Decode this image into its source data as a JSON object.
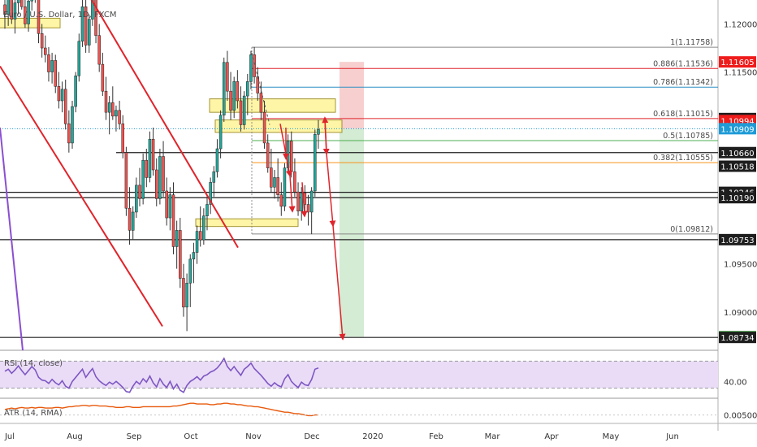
{
  "chart_data": {
    "type": "candlestick",
    "title": "Euro / U.S. Dollar, 1D, FXCM",
    "price_axis": {
      "ylim": [
        1.086,
        1.1225
      ],
      "ticks": [
        "1.12000",
        "1.11500",
        "1.09500",
        "1.09000"
      ]
    },
    "time_axis": {
      "labels": [
        "Jul",
        "Aug",
        "Sep",
        "Oct",
        "Nov",
        "Dec",
        "2020",
        "Feb",
        "Mar",
        "Apr",
        "May",
        "Jun"
      ]
    },
    "price_labels": [
      {
        "text": "1.11605",
        "value": 1.11605,
        "color": "#ef1c1c"
      },
      {
        "text": "1.11015",
        "value": 1.11015,
        "color": "#1e1e1e"
      },
      {
        "text": "1.10994",
        "value": 1.10994,
        "color": "#ef1c1c"
      },
      {
        "text": "1.10909",
        "value": 1.10909,
        "color": "#1e9bd7"
      },
      {
        "text": "1.10660",
        "value": 1.1066,
        "color": "#1e1e1e"
      },
      {
        "text": "1.10518",
        "value": 1.10518,
        "color": "#1e1e1e"
      },
      {
        "text": "1.10246",
        "value": 1.10246,
        "color": "#1e1e1e"
      },
      {
        "text": "1.10190",
        "value": 1.1019,
        "color": "#1e1e1e"
      },
      {
        "text": "1.09753",
        "value": 1.09753,
        "color": "#1e1e1e"
      },
      {
        "text": "1.08741",
        "value": 1.08741,
        "color": "#1a8a1a"
      },
      {
        "text": "1.08734",
        "value": 1.08734,
        "color": "#1e1e1e"
      }
    ],
    "fibonacci": [
      {
        "label": "1(1.11758)",
        "value": 1.11758,
        "color": "#888888"
      },
      {
        "label": "0.886(1.11536)",
        "value": 1.11536,
        "color": "#e0242b"
      },
      {
        "label": "0.786(1.11342)",
        "value": 1.11342,
        "color": "#2d8fc4"
      },
      {
        "label": "0.618(1.11015)",
        "value": 1.11015,
        "color": "#e0242b"
      },
      {
        "label": "0.5(1.10785)",
        "value": 1.10785,
        "color": "#4caf50"
      },
      {
        "label": "0.382(1.10555)",
        "value": 1.10555,
        "color": "#f7931a"
      },
      {
        "label": "0(1.09812)",
        "value": 1.09812,
        "color": "#888888"
      }
    ],
    "horizontal_levels": [
      1.1066,
      1.10246,
      1.1019,
      1.09753,
      1.08734
    ],
    "dotted_level": 1.10909,
    "position": {
      "entry": 1.10909,
      "stop": 1.11605,
      "target": 1.08741
    },
    "candles": [
      {
        "o": 1.122,
        "h": 1.124,
        "l": 1.1195,
        "c": 1.121
      },
      {
        "o": 1.121,
        "h": 1.1235,
        "l": 1.1198,
        "c": 1.1226
      },
      {
        "o": 1.1226,
        "h": 1.1245,
        "l": 1.12,
        "c": 1.1205
      },
      {
        "o": 1.1205,
        "h": 1.1228,
        "l": 1.119,
        "c": 1.1222
      },
      {
        "o": 1.1222,
        "h": 1.1244,
        "l": 1.121,
        "c": 1.1238
      },
      {
        "o": 1.1238,
        "h": 1.125,
        "l": 1.1215,
        "c": 1.1218
      },
      {
        "o": 1.1218,
        "h": 1.1232,
        "l": 1.1196,
        "c": 1.12
      },
      {
        "o": 1.12,
        "h": 1.1228,
        "l": 1.1192,
        "c": 1.1224
      },
      {
        "o": 1.1224,
        "h": 1.125,
        "l": 1.1214,
        "c": 1.124
      },
      {
        "o": 1.124,
        "h": 1.1252,
        "l": 1.1222,
        "c": 1.1228
      },
      {
        "o": 1.1228,
        "h": 1.124,
        "l": 1.118,
        "c": 1.119
      },
      {
        "o": 1.119,
        "h": 1.12,
        "l": 1.1165,
        "c": 1.1175
      },
      {
        "o": 1.1175,
        "h": 1.1188,
        "l": 1.116,
        "c": 1.1168
      },
      {
        "o": 1.1168,
        "h": 1.1176,
        "l": 1.114,
        "c": 1.115
      },
      {
        "o": 1.115,
        "h": 1.117,
        "l": 1.1138,
        "c": 1.1162
      },
      {
        "o": 1.1162,
        "h": 1.1168,
        "l": 1.1128,
        "c": 1.1135
      },
      {
        "o": 1.1135,
        "h": 1.115,
        "l": 1.1112,
        "c": 1.112
      },
      {
        "o": 1.112,
        "h": 1.114,
        "l": 1.1108,
        "c": 1.1132
      },
      {
        "o": 1.1132,
        "h": 1.1142,
        "l": 1.109,
        "c": 1.1096
      },
      {
        "o": 1.1096,
        "h": 1.111,
        "l": 1.1066,
        "c": 1.1076
      },
      {
        "o": 1.1076,
        "h": 1.112,
        "l": 1.107,
        "c": 1.1114
      },
      {
        "o": 1.1114,
        "h": 1.115,
        "l": 1.1108,
        "c": 1.1146
      },
      {
        "o": 1.1146,
        "h": 1.119,
        "l": 1.114,
        "c": 1.1182
      },
      {
        "o": 1.1182,
        "h": 1.1225,
        "l": 1.1176,
        "c": 1.1218
      },
      {
        "o": 1.1218,
        "h": 1.123,
        "l": 1.117,
        "c": 1.1178
      },
      {
        "o": 1.1178,
        "h": 1.121,
        "l": 1.117,
        "c": 1.1205
      },
      {
        "o": 1.1205,
        "h": 1.1238,
        "l": 1.1198,
        "c": 1.123
      },
      {
        "o": 1.123,
        "h": 1.124,
        "l": 1.118,
        "c": 1.1188
      },
      {
        "o": 1.1188,
        "h": 1.12,
        "l": 1.115,
        "c": 1.1158
      },
      {
        "o": 1.1158,
        "h": 1.117,
        "l": 1.1125,
        "c": 1.113
      },
      {
        "o": 1.113,
        "h": 1.1145,
        "l": 1.11,
        "c": 1.1108
      },
      {
        "o": 1.1108,
        "h": 1.1125,
        "l": 1.1085,
        "c": 1.1118
      },
      {
        "o": 1.1118,
        "h": 1.1135,
        "l": 1.11,
        "c": 1.1104
      },
      {
        "o": 1.1104,
        "h": 1.1115,
        "l": 1.1088,
        "c": 1.111
      },
      {
        "o": 1.111,
        "h": 1.112,
        "l": 1.109,
        "c": 1.1096
      },
      {
        "o": 1.1096,
        "h": 1.1105,
        "l": 1.106,
        "c": 1.1066
      },
      {
        "o": 1.1066,
        "h": 1.1072,
        "l": 1.1,
        "c": 1.1008
      },
      {
        "o": 1.1008,
        "h": 1.103,
        "l": 1.097,
        "c": 1.0985
      },
      {
        "o": 1.0985,
        "h": 1.101,
        "l": 1.0975,
        "c": 1.1004
      },
      {
        "o": 1.1004,
        "h": 1.104,
        "l": 1.0998,
        "c": 1.1032
      },
      {
        "o": 1.1032,
        "h": 1.105,
        "l": 1.101,
        "c": 1.1018
      },
      {
        "o": 1.1018,
        "h": 1.1065,
        "l": 1.1012,
        "c": 1.1058
      },
      {
        "o": 1.1058,
        "h": 1.107,
        "l": 1.103,
        "c": 1.104
      },
      {
        "o": 1.104,
        "h": 1.1088,
        "l": 1.1035,
        "c": 1.108
      },
      {
        "o": 1.108,
        "h": 1.1092,
        "l": 1.1042,
        "c": 1.1048
      },
      {
        "o": 1.1048,
        "h": 1.106,
        "l": 1.101,
        "c": 1.1018
      },
      {
        "o": 1.1018,
        "h": 1.107,
        "l": 1.1012,
        "c": 1.1062
      },
      {
        "o": 1.1062,
        "h": 1.1078,
        "l": 1.102,
        "c": 1.1026
      },
      {
        "o": 1.1026,
        "h": 1.104,
        "l": 1.099,
        "c": 1.0998
      },
      {
        "o": 1.0998,
        "h": 1.103,
        "l": 1.0985,
        "c": 1.1022
      },
      {
        "o": 1.1022,
        "h": 1.1035,
        "l": 1.096,
        "c": 1.0968
      },
      {
        "o": 1.0968,
        "h": 1.0995,
        "l": 1.0945,
        "c": 1.0985
      },
      {
        "o": 1.0985,
        "h": 1.0998,
        "l": 1.0925,
        "c": 1.0935
      },
      {
        "o": 1.0935,
        "h": 1.095,
        "l": 1.0895,
        "c": 1.0905
      },
      {
        "o": 1.0905,
        "h": 1.094,
        "l": 1.088,
        "c": 1.093
      },
      {
        "o": 1.093,
        "h": 1.096,
        "l": 1.0905,
        "c": 1.0955
      },
      {
        "o": 1.0955,
        "h": 1.0972,
        "l": 1.093,
        "c": 1.0962
      },
      {
        "o": 1.0962,
        "h": 1.099,
        "l": 1.095,
        "c": 1.0984
      },
      {
        "o": 1.0984,
        "h": 1.101,
        "l": 1.0968,
        "c": 1.0975
      },
      {
        "o": 1.0975,
        "h": 1.1008,
        "l": 1.097,
        "c": 1.1
      },
      {
        "o": 1.1,
        "h": 1.1022,
        "l": 1.0985,
        "c": 1.1012
      },
      {
        "o": 1.1012,
        "h": 1.104,
        "l": 1.1002,
        "c": 1.1035
      },
      {
        "o": 1.1035,
        "h": 1.1052,
        "l": 1.102,
        "c": 1.1046
      },
      {
        "o": 1.1046,
        "h": 1.108,
        "l": 1.104,
        "c": 1.107
      },
      {
        "o": 1.107,
        "h": 1.111,
        "l": 1.106,
        "c": 1.1105
      },
      {
        "o": 1.1105,
        "h": 1.1165,
        "l": 1.1098,
        "c": 1.116
      },
      {
        "o": 1.116,
        "h": 1.1172,
        "l": 1.112,
        "c": 1.113
      },
      {
        "o": 1.113,
        "h": 1.115,
        "l": 1.11,
        "c": 1.111
      },
      {
        "o": 1.111,
        "h": 1.1145,
        "l": 1.1102,
        "c": 1.114
      },
      {
        "o": 1.114,
        "h": 1.1152,
        "l": 1.1112,
        "c": 1.112
      },
      {
        "o": 1.112,
        "h": 1.1135,
        "l": 1.1088,
        "c": 1.1095
      },
      {
        "o": 1.1095,
        "h": 1.113,
        "l": 1.109,
        "c": 1.1125
      },
      {
        "o": 1.1125,
        "h": 1.1148,
        "l": 1.1105,
        "c": 1.114
      },
      {
        "o": 1.114,
        "h": 1.1172,
        "l": 1.1132,
        "c": 1.1168
      },
      {
        "o": 1.1168,
        "h": 1.1176,
        "l": 1.1138,
        "c": 1.1145
      },
      {
        "o": 1.1145,
        "h": 1.1155,
        "l": 1.112,
        "c": 1.1128
      },
      {
        "o": 1.1128,
        "h": 1.114,
        "l": 1.11,
        "c": 1.1108
      },
      {
        "o": 1.1108,
        "h": 1.112,
        "l": 1.107,
        "c": 1.1076
      },
      {
        "o": 1.1076,
        "h": 1.1085,
        "l": 1.1045,
        "c": 1.105
      },
      {
        "o": 1.105,
        "h": 1.107,
        "l": 1.1025,
        "c": 1.103
      },
      {
        "o": 1.103,
        "h": 1.1048,
        "l": 1.1018,
        "c": 1.104
      },
      {
        "o": 1.104,
        "h": 1.106,
        "l": 1.1015,
        "c": 1.1022
      },
      {
        "o": 1.1022,
        "h": 1.1035,
        "l": 1.1,
        "c": 1.101
      },
      {
        "o": 1.101,
        "h": 1.1055,
        "l": 1.1005,
        "c": 1.105
      },
      {
        "o": 1.105,
        "h": 1.1085,
        "l": 1.1044,
        "c": 1.1078
      },
      {
        "o": 1.1078,
        "h": 1.1088,
        "l": 1.104,
        "c": 1.1046
      },
      {
        "o": 1.1046,
        "h": 1.106,
        "l": 1.102,
        "c": 1.1025
      },
      {
        "o": 1.1025,
        "h": 1.1035,
        "l": 1.1,
        "c": 1.1005
      },
      {
        "o": 1.1005,
        "h": 1.103,
        "l": 1.0995,
        "c": 1.1024
      },
      {
        "o": 1.1024,
        "h": 1.1032,
        "l": 1.1,
        "c": 1.1012
      },
      {
        "o": 1.1012,
        "h": 1.1022,
        "l": 1.099,
        "c": 1.1004
      },
      {
        "o": 1.1004,
        "h": 1.103,
        "l": 1.0981,
        "c": 1.1026
      },
      {
        "o": 1.1026,
        "h": 1.109,
        "l": 1.102,
        "c": 1.1085
      },
      {
        "o": 1.1085,
        "h": 1.11,
        "l": 1.107,
        "c": 1.109
      }
    ],
    "indicators": [
      {
        "name": "RSI (14, close)",
        "tick_labels": [
          "40.00"
        ],
        "ylim": [
          20,
          80
        ],
        "band": [
          30,
          70
        ],
        "values": [
          55,
          58,
          52,
          57,
          63,
          56,
          50,
          56,
          62,
          57,
          46,
          42,
          41,
          37,
          43,
          38,
          35,
          41,
          33,
          30,
          40,
          46,
          52,
          58,
          46,
          53,
          59,
          47,
          41,
          37,
          34,
          39,
          36,
          40,
          36,
          31,
          25,
          24,
          33,
          40,
          36,
          44,
          39,
          48,
          38,
          32,
          44,
          36,
          31,
          40,
          29,
          36,
          27,
          24,
          34,
          40,
          43,
          47,
          42,
          48,
          50,
          54,
          56,
          60,
          66,
          74,
          62,
          56,
          62,
          55,
          49,
          58,
          62,
          67,
          59,
          54,
          49,
          43,
          37,
          33,
          38,
          34,
          32,
          44,
          50,
          40,
          35,
          31,
          39,
          35,
          34,
          43,
          58,
          60
        ]
      },
      {
        "name": "ATR (14, RMA)",
        "tick_labels": [
          "0.00500"
        ],
        "ylim": [
          0.004,
          0.0072
        ],
        "values": [
          0.0058,
          0.0059,
          0.006,
          0.0059,
          0.006,
          0.0061,
          0.006,
          0.006,
          0.0061,
          0.006,
          0.0061,
          0.0061,
          0.006,
          0.006,
          0.006,
          0.0061,
          0.0061,
          0.006,
          0.0061,
          0.0062,
          0.0062,
          0.0063,
          0.0063,
          0.0064,
          0.0064,
          0.0063,
          0.0064,
          0.0064,
          0.0063,
          0.0063,
          0.0063,
          0.0062,
          0.0062,
          0.0061,
          0.0061,
          0.0061,
          0.0062,
          0.0062,
          0.0061,
          0.0061,
          0.0061,
          0.0062,
          0.0062,
          0.0062,
          0.0062,
          0.0062,
          0.0062,
          0.0062,
          0.0062,
          0.0062,
          0.0063,
          0.0063,
          0.0064,
          0.0065,
          0.0066,
          0.0067,
          0.0067,
          0.0066,
          0.0066,
          0.0066,
          0.0066,
          0.0065,
          0.0065,
          0.0066,
          0.0066,
          0.0067,
          0.0067,
          0.0066,
          0.0066,
          0.0065,
          0.0065,
          0.0064,
          0.0063,
          0.0063,
          0.0062,
          0.0062,
          0.0061,
          0.006,
          0.0059,
          0.0058,
          0.0057,
          0.0056,
          0.0055,
          0.0054,
          0.0054,
          0.0053,
          0.0052,
          0.0052,
          0.0051,
          0.005,
          0.0049,
          0.0049,
          0.005,
          0.005
        ]
      }
    ]
  }
}
